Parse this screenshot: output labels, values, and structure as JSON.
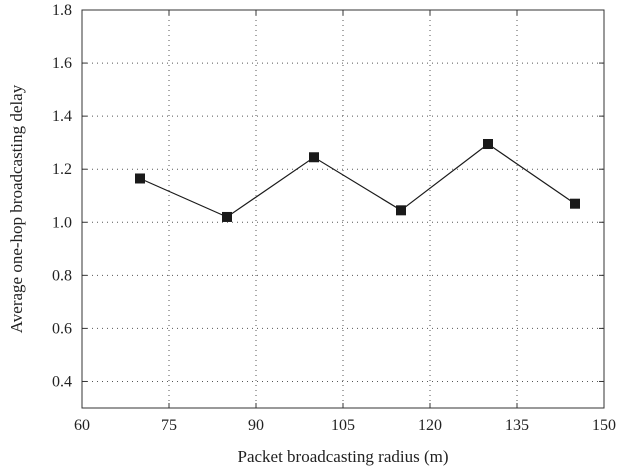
{
  "chart_data": {
    "type": "line",
    "title": "",
    "xlabel": "Packet broadcasting radius (m)",
    "ylabel": "Average one-hop broadcasting delay",
    "xlim": [
      60,
      150
    ],
    "ylim": [
      0.3,
      1.8
    ],
    "xticks": [
      60,
      75,
      90,
      105,
      120,
      135,
      150
    ],
    "yticks": [
      0.4,
      0.6,
      0.8,
      1.0,
      1.2,
      1.4,
      1.6,
      1.8
    ],
    "ytick_labels": [
      "0.4",
      "0.6",
      "0.8",
      "1.0",
      "1.2",
      "1.4",
      "1.6",
      "1.8"
    ],
    "grid": true,
    "marker": "square",
    "series": [
      {
        "x": [
          70,
          85,
          100,
          115,
          130,
          145
        ],
        "values": [
          1.165,
          1.02,
          1.245,
          1.045,
          1.295,
          1.07
        ]
      }
    ]
  }
}
